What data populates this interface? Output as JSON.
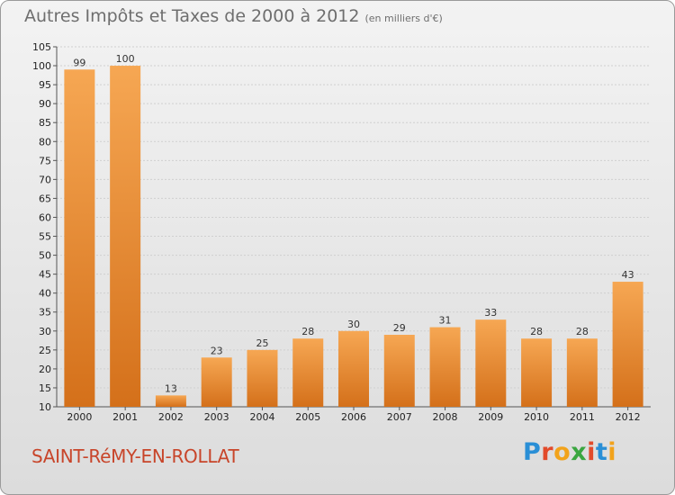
{
  "page": {
    "title": "Autres Impôts et Taxes de 2000 à 2012",
    "unit": "(en milliers d'€)",
    "commune": "SAINT-RéMY-EN-ROLLAT",
    "logo": "Proxiti",
    "colors": {
      "bar_light": "#f6a753",
      "bar_dark": "#d4701a",
      "commune": "#c8452a"
    }
  },
  "chart_data": {
    "type": "bar",
    "categories": [
      "2000",
      "2001",
      "2002",
      "2003",
      "2004",
      "2005",
      "2006",
      "2007",
      "2008",
      "2009",
      "2010",
      "2011",
      "2012"
    ],
    "values": [
      99,
      100,
      13,
      23,
      25,
      28,
      30,
      29,
      31,
      33,
      28,
      28,
      43
    ],
    "ylim": [
      10,
      105
    ],
    "yticks": [
      10,
      15,
      20,
      25,
      30,
      35,
      40,
      45,
      50,
      55,
      60,
      65,
      70,
      75,
      80,
      85,
      90,
      95,
      100,
      105
    ],
    "grid": true
  }
}
